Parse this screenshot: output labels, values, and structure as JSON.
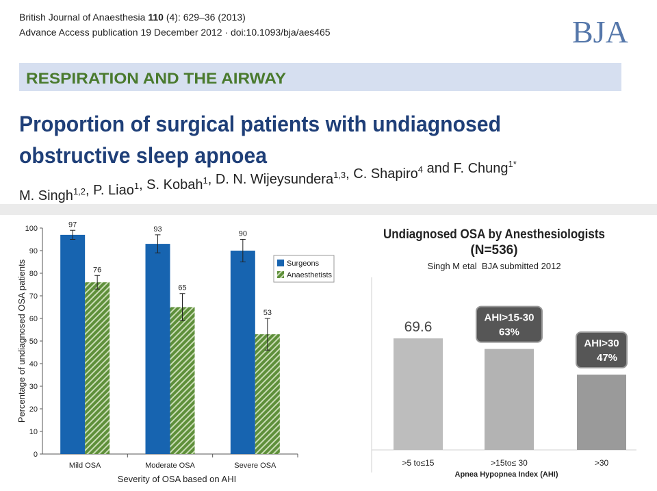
{
  "header": {
    "journal": "British Journal of Anaesthesia ",
    "volume": "110",
    "citation": " (4): 629–36 (2013)",
    "access": "Advance Access publication 19 December 2012 · doi:10.1093/bja/aes465",
    "logo": "BJA",
    "section": "RESPIRATION AND THE AIRWAY",
    "title_lines": [
      "Proportion of surgical patients with undiagnosed",
      "obstructive sleep apnoea"
    ],
    "authors": [
      {
        "text": "M. Singh",
        "sup": "1,2"
      },
      {
        "text": ", P. Liao",
        "sup": "1"
      },
      {
        "text": ", S. Kobah",
        "sup": "1"
      },
      {
        "text": ", D. N. Wijeysundera",
        "sup": "1,3"
      },
      {
        "text": ", C. Shapiro",
        "sup": "4"
      },
      {
        "text": " and F. Chung",
        "sup": "1*"
      }
    ]
  },
  "chart_data": [
    {
      "type": "grouped-bar",
      "categories": [
        "Mild OSA",
        "Moderate OSA",
        "Severe OSA"
      ],
      "series": [
        {
          "name": "Surgeons",
          "color": "#1764b0",
          "values": [
            97,
            93,
            90
          ],
          "errors": [
            2,
            4,
            5
          ]
        },
        {
          "name": "Anaesthetists",
          "color": "#5e8f3a",
          "values": [
            76,
            65,
            53
          ],
          "errors": [
            3,
            6,
            7
          ]
        }
      ],
      "ylim": [
        0,
        100
      ],
      "yticks": [
        0,
        10,
        20,
        30,
        40,
        50,
        60,
        70,
        80,
        90,
        100
      ],
      "ylabel": "Percentage of undiagnosed OSA patients",
      "xlabel": "Severity of OSA based on AHI",
      "legend": "upper-right"
    },
    {
      "type": "bar",
      "title": "Undiagnosed OSA by Anesthesiologists",
      "title2": "(N=536)",
      "subtitle": "Singh M etal  BJA submitted 2012",
      "categories": [
        ">5 to≤15",
        ">15to≤ 30",
        ">30"
      ],
      "values": [
        69.6,
        63,
        47
      ],
      "value_labels": [
        "69.6",
        "63%",
        "47%"
      ],
      "callouts": [
        null,
        "AHI>15-30",
        "AHI>30"
      ],
      "colors": [
        "#bdbdbd",
        "#b3b3b3",
        "#9a9a9a"
      ],
      "xlabel": "Apnea Hypopnea Index (AHI)"
    }
  ]
}
